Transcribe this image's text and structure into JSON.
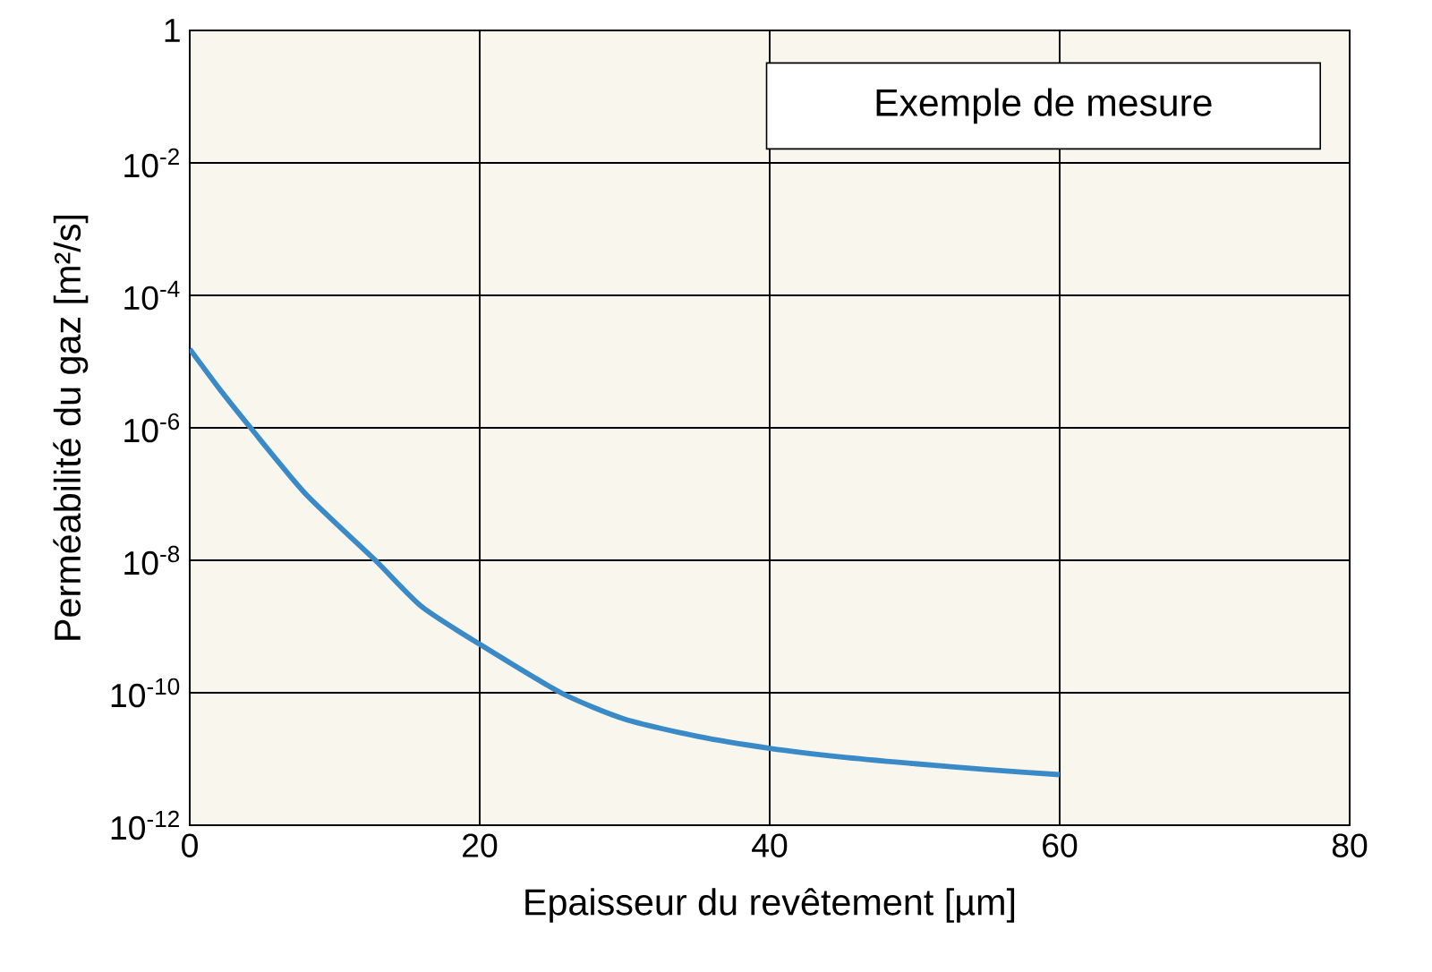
{
  "chart_data": {
    "type": "line",
    "xlabel": "Epaisseur du revêtement [µm]",
    "ylabel": "Perméabilité du gaz [m²/s]",
    "annotations": [
      "Exemple de mesure"
    ],
    "x": [
      0,
      2,
      4.2,
      8,
      12.8,
      16,
      20,
      25.6,
      30,
      35,
      40,
      45,
      50,
      55,
      60
    ],
    "series": [
      {
        "color": "#3a8ac8",
        "values": [
          1.55e-05,
          4e-06,
          1e-06,
          1e-07,
          1e-08,
          2e-09,
          5.4e-10,
          1e-10,
          4e-11,
          2.2e-11,
          1.45e-11,
          1.07e-11,
          8.5e-12,
          6.9e-12,
          5.8e-12
        ]
      }
    ],
    "xlim": [
      0,
      80
    ],
    "xticks": [
      0,
      20,
      40,
      60,
      80
    ],
    "ylim": [
      1e-12,
      1
    ],
    "log": "y",
    "yticks": [
      {
        "value": 1e-12,
        "label": "10$^{-12}$"
      },
      {
        "value": 1e-10,
        "label": "10$^{-10}$"
      },
      {
        "value": 1e-08,
        "label": "10$^{-8}$"
      },
      {
        "value": 1e-06,
        "label": "10$^{-6}$"
      },
      {
        "value": 0.0001,
        "label": "10$^{-4}$"
      },
      {
        "value": 0.01,
        "label": "10$^{-2}$"
      },
      {
        "value": 1,
        "label": "1"
      }
    ],
    "grid": true,
    "marker": "none",
    "line_style": "solid"
  }
}
